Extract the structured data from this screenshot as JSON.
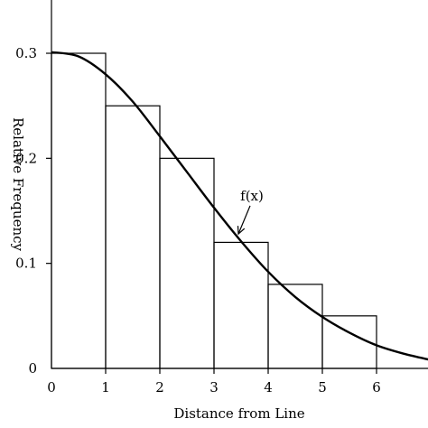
{
  "chart_data": {
    "type": "bar",
    "xlabel": "Distance from Line",
    "ylabel": "Relative Frequency",
    "xlim": [
      0,
      7
    ],
    "ylim": [
      0,
      0.3
    ],
    "x_ticks": [
      "0",
      "1",
      "2",
      "3",
      "4",
      "5",
      "6"
    ],
    "y_ticks": [
      "0",
      "0.1",
      "0.2",
      "0.3"
    ],
    "grid": false,
    "histogram": {
      "bin_edges": [
        0,
        1,
        2,
        3,
        4,
        5,
        6
      ],
      "values": [
        0.3,
        0.25,
        0.2,
        0.12,
        0.08,
        0.05
      ]
    },
    "curve": {
      "label": "f(x)",
      "points": [
        [
          0,
          0.301
        ],
        [
          0.5,
          0.297
        ],
        [
          1,
          0.28
        ],
        [
          1.5,
          0.254
        ],
        [
          2,
          0.221
        ],
        [
          2.5,
          0.187
        ],
        [
          3,
          0.153
        ],
        [
          3.5,
          0.121
        ],
        [
          4,
          0.092
        ],
        [
          4.5,
          0.068
        ],
        [
          5,
          0.049
        ],
        [
          5.5,
          0.034
        ],
        [
          6,
          0.022
        ],
        [
          6.5,
          0.014
        ],
        [
          7,
          0.008
        ]
      ]
    },
    "annotations": [
      {
        "text": "f(x)",
        "x": 3.7,
        "y": 0.16,
        "arrow_to": [
          3.45,
          0.128
        ]
      }
    ]
  }
}
